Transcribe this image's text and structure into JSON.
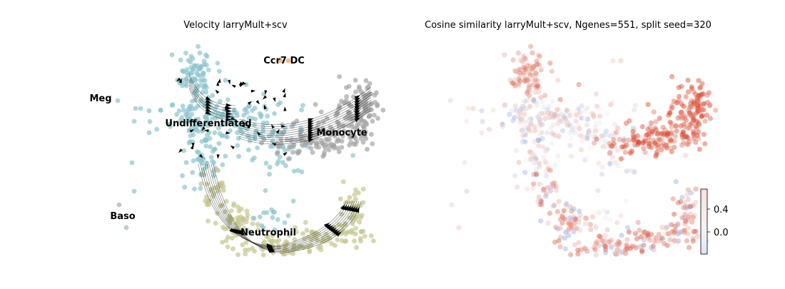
{
  "panels": {
    "left": {
      "title": "Velocity larryMult+scv"
    },
    "right": {
      "title": "Cosine similarity larryMult+scv, Ngenes=551, split seed=320"
    }
  },
  "colors": {
    "Undifferentiated": "#8fc4cd",
    "Monocyte": "#a5a5a5",
    "Neutrophil": "#c5c68e",
    "Ccr7_DC": "#ff9a55",
    "Meg": "#8fc4cd",
    "Baso": "#a3b0bc",
    "stream": "#000000",
    "cmap_low": "#5a7ee0",
    "cmap_mid": "#f2f2f2",
    "cmap_high": "#d9452c"
  },
  "chart_data": [
    {
      "type": "scatter",
      "subtype": "embedding with velocity streamlines",
      "title": "Velocity larryMult+scv",
      "xlabel": "",
      "ylabel": "",
      "axes": "off",
      "cluster_labels": [
        "Meg",
        "Ccr7 DC",
        "Undifferentiated",
        "Monocyte",
        "Baso",
        "Neutrophil"
      ],
      "annotations": [
        {
          "text": "Meg",
          "cluster": "Meg"
        },
        {
          "text": "Ccr7 DC",
          "cluster": "Ccr7_DC"
        },
        {
          "text": "Undifferentiated",
          "cluster": "Undifferentiated"
        },
        {
          "text": "Monocyte",
          "cluster": "Monocyte"
        },
        {
          "text": "Baso",
          "cluster": "Baso"
        },
        {
          "text": "Neutrophil",
          "cluster": "Neutrophil"
        }
      ]
    },
    {
      "type": "scatter",
      "subtype": "embedding colored by cosine similarity",
      "title": "Cosine similarity larryMult+scv, Ngenes=551, split seed=320",
      "xlabel": "",
      "ylabel": "",
      "axes": "off",
      "colorbar": {
        "ticks": [
          0.4,
          0.0
        ],
        "tick_labels": [
          "0.4",
          "0.0"
        ],
        "range": [
          -0.25,
          0.75
        ]
      }
    }
  ]
}
